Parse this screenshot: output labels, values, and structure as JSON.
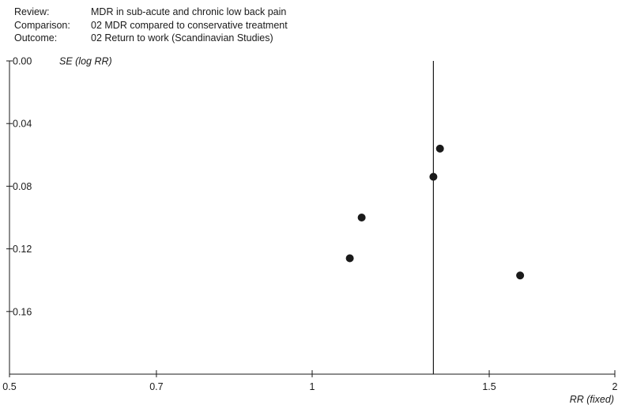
{
  "header": {
    "review_label": "Review:",
    "review_value": "MDR in sub-acute and chronic low back pain",
    "comparison_label": "Comparison:",
    "comparison_value": "02 MDR compared to conservative treatment",
    "outcome_label": "Outcome:",
    "outcome_value": "02 Return to work (Scandinavian Studies)"
  },
  "chart_data": {
    "type": "scatter",
    "title": "",
    "xlabel": "RR (fixed)",
    "ylabel": "SE (log RR)",
    "x_scale": "log",
    "xlim": [
      0.5,
      2
    ],
    "x_ticks": [
      0.5,
      0.7,
      1,
      1.5,
      2
    ],
    "x_tick_labels": [
      "0.5",
      "0.7",
      "1",
      "1.5",
      "2"
    ],
    "ylim": [
      0,
      0.2
    ],
    "y_inverted": true,
    "y_ticks": [
      0,
      0.04,
      0.08,
      0.12,
      0.16
    ],
    "y_tick_labels": [
      "0.00",
      "0.04",
      "0.08",
      "0.12",
      "0.16"
    ],
    "reference_line_x": 1.32,
    "points": [
      {
        "x": 1.34,
        "y": 0.056
      },
      {
        "x": 1.32,
        "y": 0.074
      },
      {
        "x": 1.12,
        "y": 0.1
      },
      {
        "x": 1.09,
        "y": 0.126
      },
      {
        "x": 1.61,
        "y": 0.137
      }
    ],
    "grid": false,
    "legend": "none",
    "colors": {
      "axis": "#1a1a1a",
      "point": "#1a1a1a",
      "line": "#1a1a1a"
    }
  }
}
